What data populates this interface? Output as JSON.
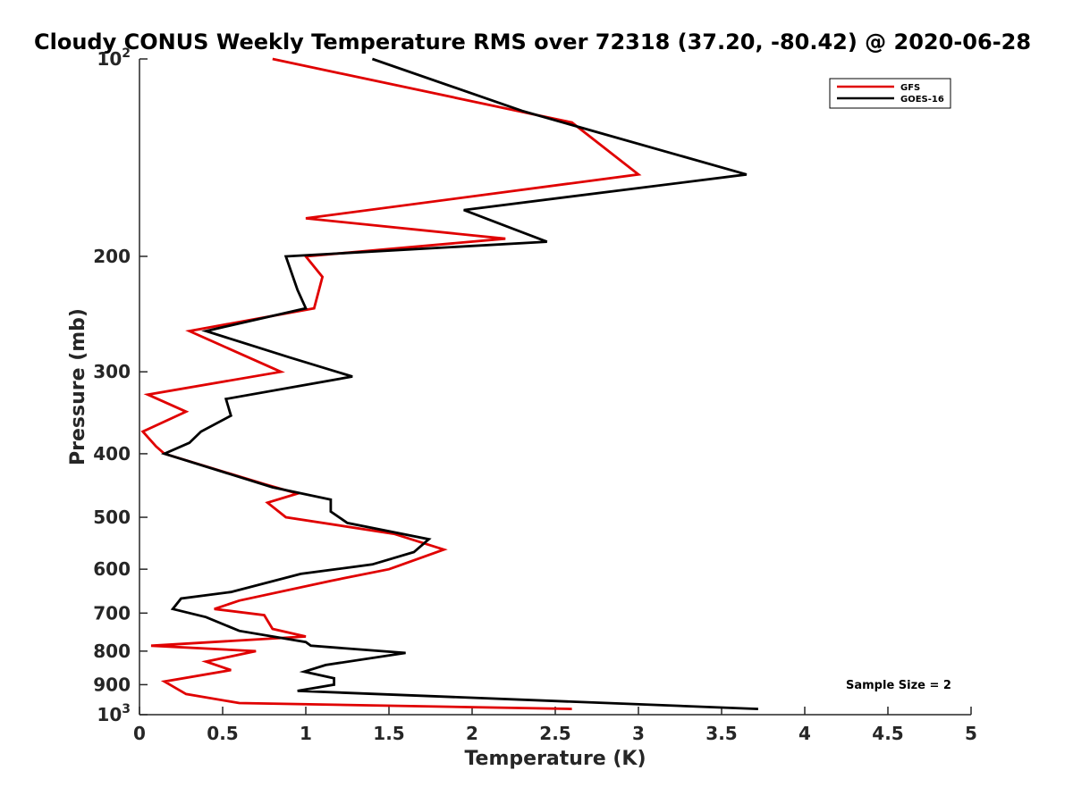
{
  "chart_data": {
    "type": "line",
    "title": "Cloudy CONUS Weekly Temperature RMS over 72318 (37.20, -80.42) @ 2020-06-28",
    "xlabel": "Temperature (K)",
    "ylabel": "Pressure (mb)",
    "xlim": [
      0,
      5
    ],
    "ylim": [
      100,
      1000
    ],
    "y_scale": "log",
    "y_reversed": true,
    "grid": false,
    "legend_position": "top-right",
    "x_ticks": [
      {
        "value": 0,
        "label": "0"
      },
      {
        "value": 0.5,
        "label": "0.5"
      },
      {
        "value": 1,
        "label": "1"
      },
      {
        "value": 1.5,
        "label": "1.5"
      },
      {
        "value": 2,
        "label": "2"
      },
      {
        "value": 2.5,
        "label": "2.5"
      },
      {
        "value": 3,
        "label": "3"
      },
      {
        "value": 3.5,
        "label": "3.5"
      },
      {
        "value": 4,
        "label": "4"
      },
      {
        "value": 4.5,
        "label": "4.5"
      },
      {
        "value": 5,
        "label": "5"
      }
    ],
    "y_ticks": [
      {
        "value": 100,
        "base": "10",
        "exp": "2"
      },
      {
        "value": 200,
        "label": "200"
      },
      {
        "value": 300,
        "label": "300"
      },
      {
        "value": 400,
        "label": "400"
      },
      {
        "value": 500,
        "label": "500"
      },
      {
        "value": 600,
        "label": "600"
      },
      {
        "value": 700,
        "label": "700"
      },
      {
        "value": 800,
        "label": "800"
      },
      {
        "value": 900,
        "label": "900"
      },
      {
        "value": 1000,
        "base": "10",
        "exp": "3"
      }
    ],
    "series": [
      {
        "name": "GFS",
        "color": "#e00000",
        "points": [
          [
            0.8,
            100
          ],
          [
            2.6,
            125
          ],
          [
            3.0,
            150
          ],
          [
            1.0,
            175
          ],
          [
            2.2,
            188
          ],
          [
            1.0,
            200
          ],
          [
            1.1,
            215
          ],
          [
            1.05,
            240
          ],
          [
            0.3,
            260
          ],
          [
            0.85,
            300
          ],
          [
            0.05,
            325
          ],
          [
            0.28,
            345
          ],
          [
            0.02,
            370
          ],
          [
            0.1,
            390
          ],
          [
            0.15,
            400
          ],
          [
            0.75,
            445
          ],
          [
            0.95,
            460
          ],
          [
            0.77,
            475
          ],
          [
            0.88,
            500
          ],
          [
            1.53,
            530
          ],
          [
            1.83,
            560
          ],
          [
            1.5,
            600
          ],
          [
            1.15,
            625
          ],
          [
            0.6,
            670
          ],
          [
            0.45,
            690
          ],
          [
            0.75,
            705
          ],
          [
            0.8,
            740
          ],
          [
            1.0,
            760
          ],
          [
            0.07,
            785
          ],
          [
            0.7,
            800
          ],
          [
            0.4,
            830
          ],
          [
            0.55,
            855
          ],
          [
            0.15,
            890
          ],
          [
            0.28,
            930
          ],
          [
            0.6,
            960
          ],
          [
            2.6,
            980
          ]
        ]
      },
      {
        "name": "GOES-16",
        "color": "#000000",
        "points": [
          [
            1.4,
            100
          ],
          [
            2.3,
            120
          ],
          [
            3.65,
            150
          ],
          [
            1.95,
            170
          ],
          [
            2.45,
            190
          ],
          [
            0.88,
            200
          ],
          [
            0.95,
            225
          ],
          [
            1.0,
            240
          ],
          [
            0.4,
            260
          ],
          [
            0.9,
            285
          ],
          [
            1.28,
            305
          ],
          [
            0.52,
            330
          ],
          [
            0.55,
            350
          ],
          [
            0.37,
            370
          ],
          [
            0.3,
            385
          ],
          [
            0.15,
            400
          ],
          [
            0.8,
            450
          ],
          [
            1.15,
            470
          ],
          [
            1.15,
            490
          ],
          [
            1.25,
            510
          ],
          [
            1.74,
            540
          ],
          [
            1.65,
            565
          ],
          [
            1.4,
            590
          ],
          [
            0.97,
            610
          ],
          [
            0.55,
            650
          ],
          [
            0.25,
            665
          ],
          [
            0.2,
            690
          ],
          [
            0.4,
            710
          ],
          [
            0.6,
            745
          ],
          [
            1.0,
            775
          ],
          [
            1.03,
            785
          ],
          [
            1.6,
            805
          ],
          [
            1.12,
            840
          ],
          [
            0.99,
            860
          ],
          [
            1.17,
            880
          ],
          [
            1.17,
            900
          ],
          [
            0.95,
            920
          ],
          [
            3.72,
            980
          ]
        ]
      }
    ],
    "annotations": [
      {
        "text": "Sample Size = 2",
        "position": "bottom-right"
      }
    ]
  }
}
